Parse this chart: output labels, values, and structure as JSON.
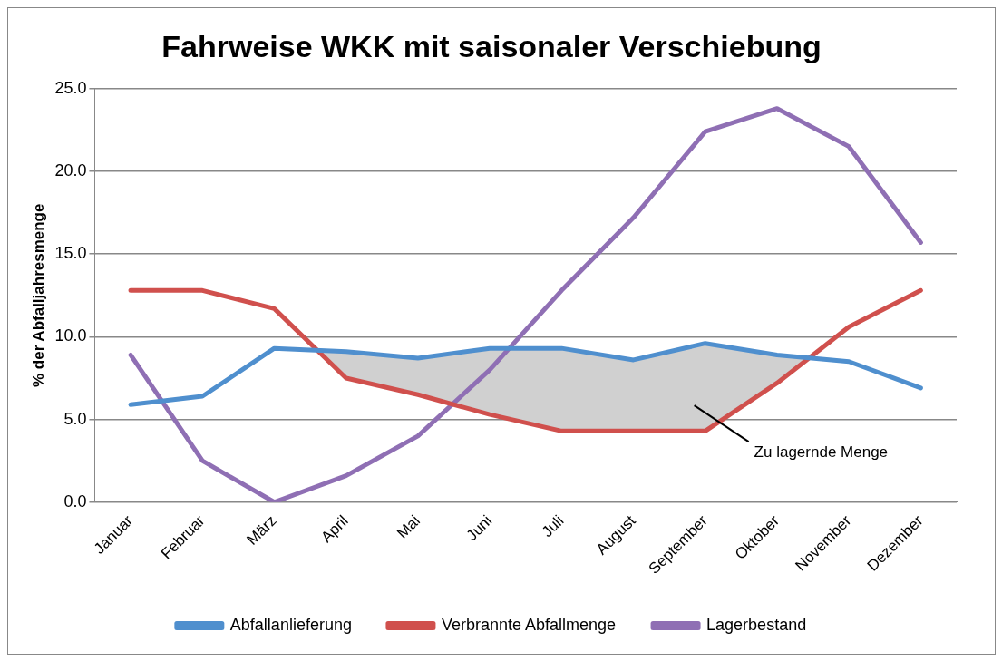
{
  "chart_data": {
    "type": "line",
    "title": "Fahrweise WKK mit saisonaler Verschiebung",
    "ylabel": "% der Abfalljahresmenge",
    "categories": [
      "Januar",
      "Februar",
      "März",
      "April",
      "Mai",
      "Juni",
      "Juli",
      "August",
      "September",
      "Oktober",
      "November",
      "Dezember"
    ],
    "series": [
      {
        "name": "Abfallanlieferung",
        "color": "#4f8fce",
        "values": [
          5.9,
          6.4,
          9.3,
          9.1,
          8.7,
          9.3,
          9.3,
          8.6,
          9.6,
          8.9,
          8.5,
          6.9
        ],
        "lower": [
          12.8,
          12.8,
          11.7,
          7.5,
          6.5,
          5.3,
          4.3,
          4.3,
          4.3,
          7.2,
          10.6,
          12.8
        ],
        "upper": [
          5.9,
          6.4,
          9.3,
          9.1,
          8.7,
          9.3,
          9.3,
          8.6,
          9.6,
          8.9,
          8.5,
          6.9
        ]
      },
      {
        "name": "Verbrannte Abfallmenge",
        "color": "#d0504d",
        "values": [
          12.8,
          12.8,
          11.7,
          7.5,
          6.5,
          5.3,
          4.3,
          4.3,
          4.3,
          7.2,
          10.6,
          12.8
        ]
      },
      {
        "name": "Lagerbestand",
        "color": "#8f6fb4",
        "values": [
          8.9,
          2.5,
          0,
          1.6,
          4.0,
          8.0,
          12.8,
          17.2,
          22.4,
          23.8,
          21.5,
          15.7
        ]
      }
    ],
    "ylim": [
      0,
      25
    ],
    "yticks": [
      {
        "value": 0,
        "label": "0.0"
      },
      {
        "value": 5,
        "label": "5.0"
      },
      {
        "value": 10,
        "label": "10.0"
      },
      {
        "value": 15,
        "label": "15.0"
      },
      {
        "value": 20,
        "label": "20.0"
      },
      {
        "value": 25,
        "label": "25.0"
      }
    ],
    "grid": "y",
    "legend": "bottom",
    "marker": "none",
    "line_style": "solid",
    "annotations": [
      "Zu lagernde Menge"
    ]
  }
}
